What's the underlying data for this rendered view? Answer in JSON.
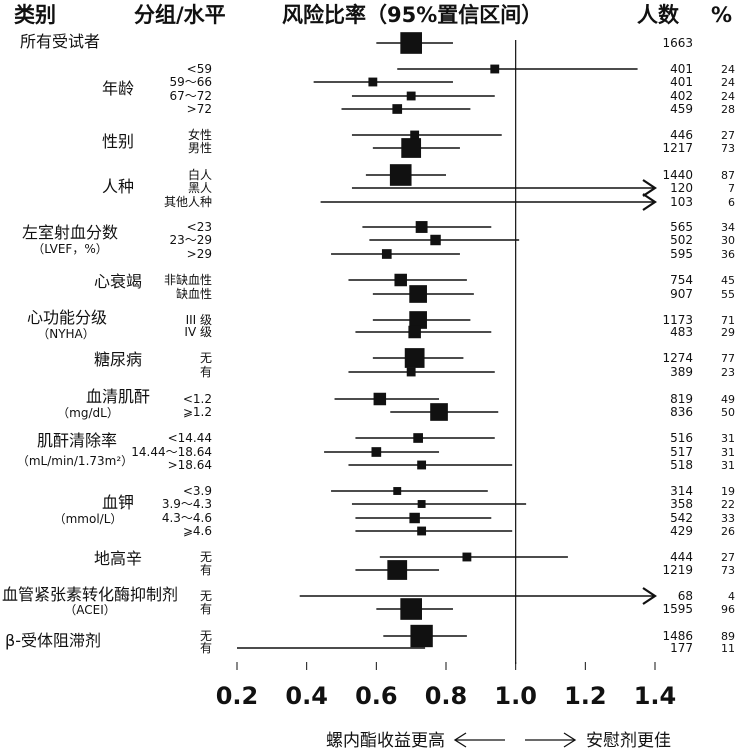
{
  "headers": {
    "category": "类别",
    "level": "分组/水平",
    "hr": "风险比率（95%置信区间）",
    "n": "人数",
    "pct": "%"
  },
  "direction": {
    "left": "螺内酯收益更高",
    "right": "安慰剂更佳"
  },
  "colors": {
    "marker": "#111111",
    "line": "#111111"
  },
  "chart_data": {
    "type": "forest",
    "title": "",
    "xlabel": "",
    "ylabel": "",
    "xlim": [
      0.2,
      1.4
    ],
    "x_ticks": [
      "0.2",
      "0.4",
      "0.6",
      "0.8",
      "1.0",
      "1.2",
      "1.4"
    ],
    "reference_line": 1.0,
    "groups": [
      {
        "category": "所有受试者",
        "category_sub": "",
        "rows": [
          {
            "level": "",
            "hr": 0.7,
            "lo": 0.6,
            "hi": 0.82,
            "n": "1663",
            "pct": "",
            "size": 3
          }
        ]
      },
      {
        "category": "年龄",
        "category_sub": "",
        "rows": [
          {
            "level": "<59",
            "hr": 0.94,
            "lo": 0.66,
            "hi": 1.35,
            "n": "401",
            "pct": "24",
            "size": 0.5
          },
          {
            "level": "59～66",
            "hr": 0.59,
            "lo": 0.42,
            "hi": 0.82,
            "n": "401",
            "pct": "24",
            "size": 0.5
          },
          {
            "level": "67～72",
            "hr": 0.7,
            "lo": 0.53,
            "hi": 0.94,
            "n": "402",
            "pct": "24",
            "size": 0.5
          },
          {
            "level": ">72",
            "hr": 0.66,
            "lo": 0.5,
            "hi": 0.87,
            "n": "459",
            "pct": "28",
            "size": 0.6
          }
        ]
      },
      {
        "category": "性别",
        "category_sub": "",
        "rows": [
          {
            "level": "女性",
            "hr": 0.71,
            "lo": 0.53,
            "hi": 0.96,
            "n": "446",
            "pct": "27",
            "size": 0.5
          },
          {
            "level": "男性",
            "hr": 0.7,
            "lo": 0.59,
            "hi": 0.84,
            "n": "1217",
            "pct": "73",
            "size": 2.5
          }
        ]
      },
      {
        "category": "人种",
        "category_sub": "",
        "rows": [
          {
            "level": "白人",
            "hr": 0.67,
            "lo": 0.57,
            "hi": 0.8,
            "n": "1440",
            "pct": "87",
            "size": 3
          },
          {
            "level": "黑人",
            "hr": null,
            "lo": 0.53,
            "hi": 1.4,
            "n": "120",
            "pct": "7",
            "size": 0,
            "arrow": true
          },
          {
            "level": "其他人种",
            "hr": null,
            "lo": 0.44,
            "hi": 1.4,
            "n": "103",
            "pct": "6",
            "size": 0,
            "arrow": true
          }
        ]
      },
      {
        "category": "左室射血分数",
        "category_sub": "（LVEF，%）",
        "rows": [
          {
            "level": "<23",
            "hr": 0.73,
            "lo": 0.56,
            "hi": 0.93,
            "n": "565",
            "pct": "34",
            "size": 0.9
          },
          {
            "level": "23～29",
            "hr": 0.77,
            "lo": 0.58,
            "hi": 1.01,
            "n": "502",
            "pct": "30",
            "size": 0.7
          },
          {
            "level": ">29",
            "hr": 0.63,
            "lo": 0.47,
            "hi": 0.84,
            "n": "595",
            "pct": "36",
            "size": 0.6
          }
        ]
      },
      {
        "category": "心衰竭",
        "category_sub": "",
        "rows": [
          {
            "level": "非缺血性",
            "hr": 0.67,
            "lo": 0.52,
            "hi": 0.86,
            "n": "754",
            "pct": "45",
            "size": 1
          },
          {
            "level": "缺血性",
            "hr": 0.72,
            "lo": 0.59,
            "hi": 0.88,
            "n": "907",
            "pct": "55",
            "size": 2
          }
        ]
      },
      {
        "category": "心功能分级",
        "category_sub": "（NYHA）",
        "rows": [
          {
            "level": "III 级",
            "hr": 0.72,
            "lo": 0.59,
            "hi": 0.87,
            "n": "1173",
            "pct": "71",
            "size": 2
          },
          {
            "level": "IV 级",
            "hr": 0.71,
            "lo": 0.54,
            "hi": 0.93,
            "n": "483",
            "pct": "29",
            "size": 1
          }
        ]
      },
      {
        "category": "糖尿病",
        "category_sub": "",
        "rows": [
          {
            "level": "无",
            "hr": 0.71,
            "lo": 0.59,
            "hi": 0.85,
            "n": "1274",
            "pct": "77",
            "size": 2.5
          },
          {
            "level": "有",
            "hr": 0.7,
            "lo": 0.52,
            "hi": 0.94,
            "n": "389",
            "pct": "23",
            "size": 0.5
          }
        ]
      },
      {
        "category": "血清肌酐",
        "category_sub": "（mg/dL）",
        "rows": [
          {
            "level": "<1.2",
            "hr": 0.61,
            "lo": 0.48,
            "hi": 0.78,
            "n": "819",
            "pct": "49",
            "size": 1
          },
          {
            "level": "⩾1.2",
            "hr": 0.78,
            "lo": 0.64,
            "hi": 0.95,
            "n": "836",
            "pct": "50",
            "size": 2
          }
        ]
      },
      {
        "category": "肌酐清除率",
        "category_sub": "（mL/min/1.73m²）",
        "rows": [
          {
            "level": "<14.44",
            "hr": 0.72,
            "lo": 0.54,
            "hi": 0.94,
            "n": "516",
            "pct": "31",
            "size": 0.6
          },
          {
            "level": "14.44～18.64",
            "hr": 0.6,
            "lo": 0.45,
            "hi": 0.78,
            "n": "517",
            "pct": "31",
            "size": 0.6
          },
          {
            "level": ">18.64",
            "hr": 0.73,
            "lo": 0.52,
            "hi": 0.99,
            "n": "518",
            "pct": "31",
            "size": 0.5
          }
        ]
      },
      {
        "category": "血钾",
        "category_sub": "（mmol/L）",
        "rows": [
          {
            "level": "<3.9",
            "hr": 0.66,
            "lo": 0.47,
            "hi": 0.92,
            "n": "314",
            "pct": "19",
            "size": 0.4
          },
          {
            "level": "3.9～4.3",
            "hr": 0.73,
            "lo": 0.53,
            "hi": 1.03,
            "n": "358",
            "pct": "22",
            "size": 0.4
          },
          {
            "level": "4.3～4.6",
            "hr": 0.71,
            "lo": 0.54,
            "hi": 0.93,
            "n": "542",
            "pct": "33",
            "size": 0.7
          },
          {
            "level": "⩾4.6",
            "hr": 0.73,
            "lo": 0.54,
            "hi": 0.99,
            "n": "429",
            "pct": "26",
            "size": 0.5
          }
        ]
      },
      {
        "category": "地高辛",
        "category_sub": "",
        "rows": [
          {
            "level": "无",
            "hr": 0.86,
            "lo": 0.61,
            "hi": 1.15,
            "n": "444",
            "pct": "27",
            "size": 0.5
          },
          {
            "level": "有",
            "hr": 0.66,
            "lo": 0.54,
            "hi": 0.78,
            "n": "1219",
            "pct": "73",
            "size": 2.5
          }
        ]
      },
      {
        "category": "血管紧张素转化酶抑制剂",
        "category_sub": "（ACEI）",
        "rows": [
          {
            "level": "无",
            "hr": null,
            "lo": 0.38,
            "hi": 1.4,
            "n": "68",
            "pct": "4",
            "size": 0,
            "arrow": true
          },
          {
            "level": "有",
            "hr": 0.7,
            "lo": 0.6,
            "hi": 0.82,
            "n": "1595",
            "pct": "96",
            "size": 3
          }
        ]
      },
      {
        "category": "β-受体阻滞剂",
        "category_sub": "",
        "rows": [
          {
            "level": "无",
            "hr": 0.73,
            "lo": 0.62,
            "hi": 0.86,
            "n": "1486",
            "pct": "89",
            "size": 3.2
          },
          {
            "level": "有",
            "hr": null,
            "lo": 0.2,
            "hi": 0.74,
            "n": "177",
            "pct": "11",
            "size": 0
          }
        ]
      }
    ]
  }
}
